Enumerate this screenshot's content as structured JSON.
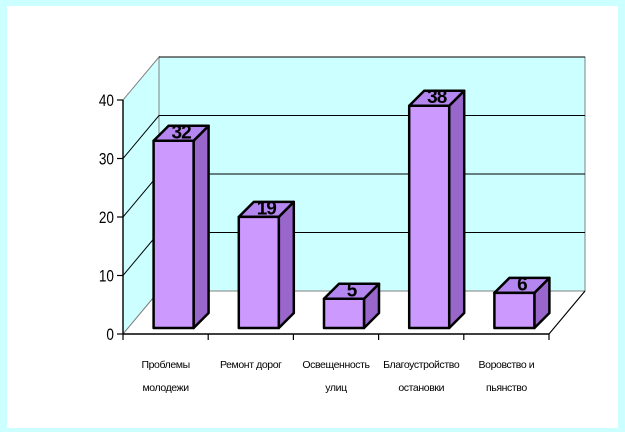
{
  "chart_data": {
    "type": "bar",
    "style": "3d-column",
    "categories": [
      [
        "Проблемы",
        "молодежи"
      ],
      [
        "Ремонт дорог"
      ],
      [
        "Освещенность",
        "улиц"
      ],
      [
        "Благоустройство",
        "остановки"
      ],
      [
        "Воровство и",
        "пьянство"
      ]
    ],
    "values": [
      32,
      19,
      5,
      38,
      6
    ],
    "data_labels": [
      "32",
      "19",
      "5",
      "38",
      "6"
    ],
    "y_ticks": [
      "0",
      "10",
      "20",
      "30",
      "40"
    ],
    "ylim": [
      0,
      40
    ],
    "grid": true,
    "legend": "none",
    "colors": {
      "bar_front": "#cc99ff",
      "bar_side": "#9966cc",
      "bar_top": "#b386f0",
      "wall": "#ccffff",
      "floor": "#ffffff",
      "background": "#ccffff",
      "frame": "#ffffff"
    }
  }
}
